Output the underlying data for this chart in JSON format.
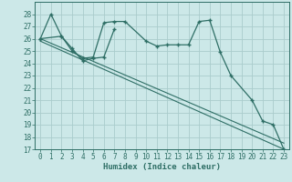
{
  "xlabel": "Humidex (Indice chaleur)",
  "bg_color": "#cce8e8",
  "grid_color": "#aacccc",
  "line_color": "#2e6e65",
  "xlim": [
    -0.5,
    23.5
  ],
  "ylim": [
    17,
    29
  ],
  "yticks": [
    17,
    18,
    19,
    20,
    21,
    22,
    23,
    24,
    25,
    26,
    27,
    28
  ],
  "xticks": [
    0,
    1,
    2,
    3,
    4,
    5,
    6,
    7,
    8,
    9,
    10,
    11,
    12,
    13,
    14,
    15,
    16,
    17,
    18,
    19,
    20,
    21,
    22,
    23
  ],
  "line1_x": [
    0,
    1,
    2,
    3,
    4,
    5,
    6,
    7,
    8,
    10,
    11,
    12,
    13,
    14,
    15,
    16,
    17,
    18,
    20,
    21,
    22,
    23
  ],
  "line1_y": [
    26.0,
    28.0,
    26.2,
    25.0,
    24.4,
    24.5,
    27.3,
    27.4,
    27.4,
    25.8,
    25.4,
    25.5,
    25.5,
    25.5,
    27.4,
    27.5,
    24.9,
    23.0,
    21.0,
    19.3,
    19.0,
    17.0
  ],
  "line2_x": [
    0,
    2,
    3,
    4,
    5,
    6,
    7
  ],
  "line2_y": [
    26.0,
    26.2,
    25.2,
    24.2,
    24.4,
    24.5,
    26.8
  ],
  "line3_x": [
    0,
    23
  ],
  "line3_y": [
    26.0,
    17.5
  ],
  "line4_x": [
    0,
    23
  ],
  "line4_y": [
    25.8,
    17.0
  ]
}
